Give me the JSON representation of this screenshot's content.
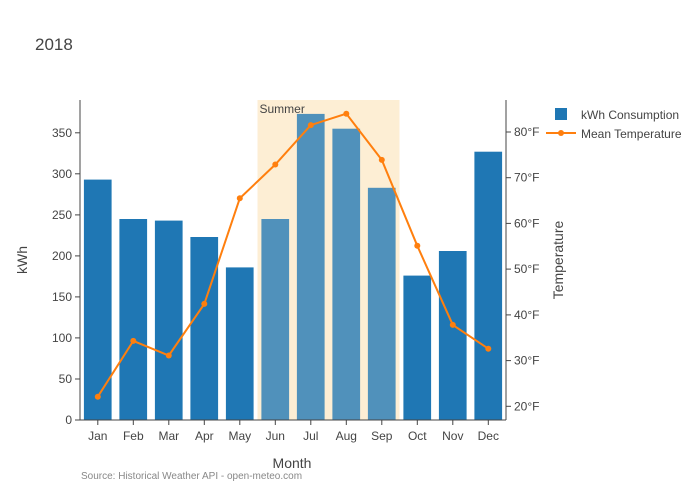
{
  "chart_data": {
    "type": "bar",
    "title": "2018",
    "xlabel": "Month",
    "ylabel": "kWh",
    "y2label": "Temperature",
    "categories": [
      "Jan",
      "Feb",
      "Mar",
      "Apr",
      "May",
      "Jun",
      "Jul",
      "Aug",
      "Sep",
      "Oct",
      "Nov",
      "Dec"
    ],
    "ylim": [
      0,
      390
    ],
    "y2lim": [
      17,
      87
    ],
    "yticks": [
      0,
      50,
      100,
      150,
      200,
      250,
      300,
      350
    ],
    "y2ticks": [
      20,
      30,
      40,
      50,
      60,
      70,
      80
    ],
    "y2tick_suffix": "°F",
    "series": [
      {
        "name": "kWh Consumption",
        "type": "bar",
        "axis": "left",
        "color": "#1f77b4",
        "values": [
          293,
          245,
          243,
          223,
          186,
          245,
          373,
          355,
          283,
          176,
          206,
          327
        ]
      },
      {
        "name": "Mean Temperature",
        "type": "line",
        "axis": "right",
        "color": "#ff7f0e",
        "values": [
          22.1,
          34.3,
          31.1,
          42.4,
          65.5,
          72.9,
          81.5,
          84.0,
          73.9,
          55.1,
          37.8,
          32.6
        ]
      }
    ],
    "highlight": {
      "label": "Summer",
      "from": "Jun",
      "to": "Sep",
      "color": "#fdebcd"
    },
    "legend_position": "top-right",
    "grid": false
  },
  "source_note": "Source: Historical Weather API - open-meteo.com"
}
